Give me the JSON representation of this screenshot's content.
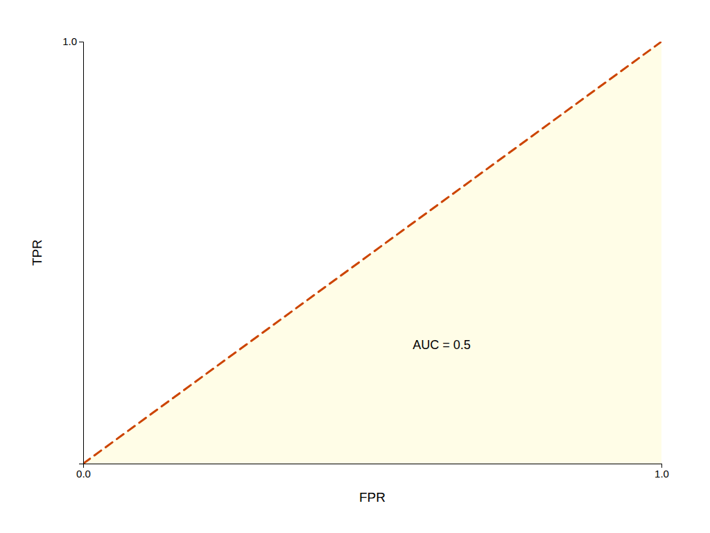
{
  "chart_data": {
    "type": "line",
    "xlabel": "FPR",
    "ylabel": "TPR",
    "x": [
      0,
      1
    ],
    "series": [
      {
        "type": "area",
        "color": "#FFFDE7",
        "values": [
          0,
          1
        ]
      },
      {
        "type": "line",
        "color": "#CC4400",
        "line_style": "dashed",
        "values": [
          0,
          1
        ]
      }
    ],
    "xlim": [
      0,
      1
    ],
    "ylim": [
      0,
      1
    ],
    "xticks": [
      {
        "value": 0.0,
        "label": "0.0"
      },
      {
        "value": 1.0,
        "label": "1.0"
      }
    ],
    "yticks": [
      {
        "value": 1.0,
        "label": "1.0"
      }
    ],
    "annotations": [
      {
        "text": "AUC = 0.5",
        "x": 0.62,
        "y": 0.28
      }
    ],
    "grid": false
  }
}
